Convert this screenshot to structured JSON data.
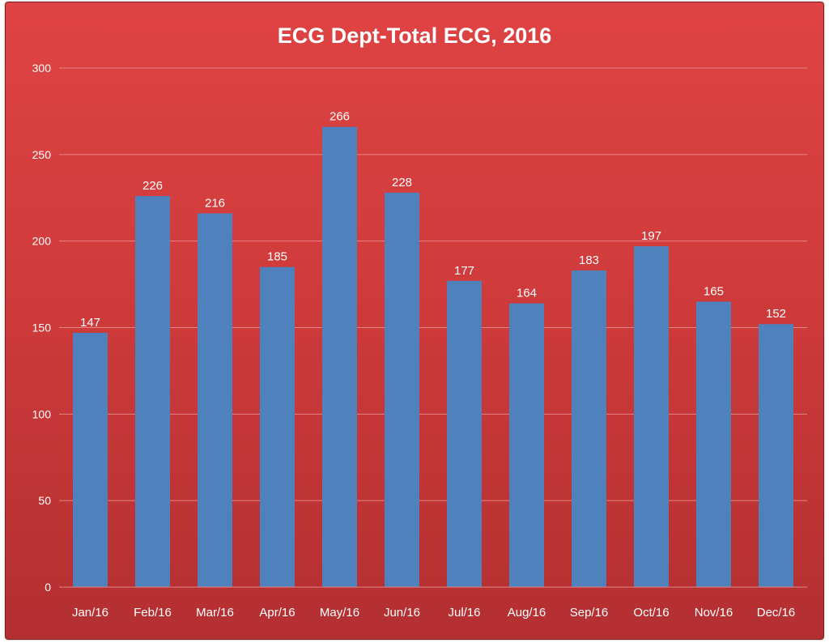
{
  "chart_data": {
    "type": "bar",
    "title": "ECG Dept-Total ECG, 2016",
    "xlabel": "",
    "ylabel": "",
    "categories": [
      "Jan/16",
      "Feb/16",
      "Mar/16",
      "Apr/16",
      "May/16",
      "Jun/16",
      "Jul/16",
      "Aug/16",
      "Sep/16",
      "Oct/16",
      "Nov/16",
      "Dec/16"
    ],
    "series": [
      {
        "values": [
          147,
          226,
          216,
          185,
          266,
          228,
          177,
          164,
          183,
          197,
          165,
          152
        ],
        "color": "#4f81bd"
      }
    ],
    "ylim": [
      0,
      300
    ],
    "yticks": [
      0,
      50,
      100,
      150,
      200,
      250,
      300
    ],
    "grid": true,
    "legend": "none",
    "data_labels": true,
    "colors": {
      "background_top": "#df4343",
      "background_bottom": "#b32f31",
      "gridline": "#e58585",
      "text": "#ffffff",
      "bar": "#4f81bd"
    }
  }
}
